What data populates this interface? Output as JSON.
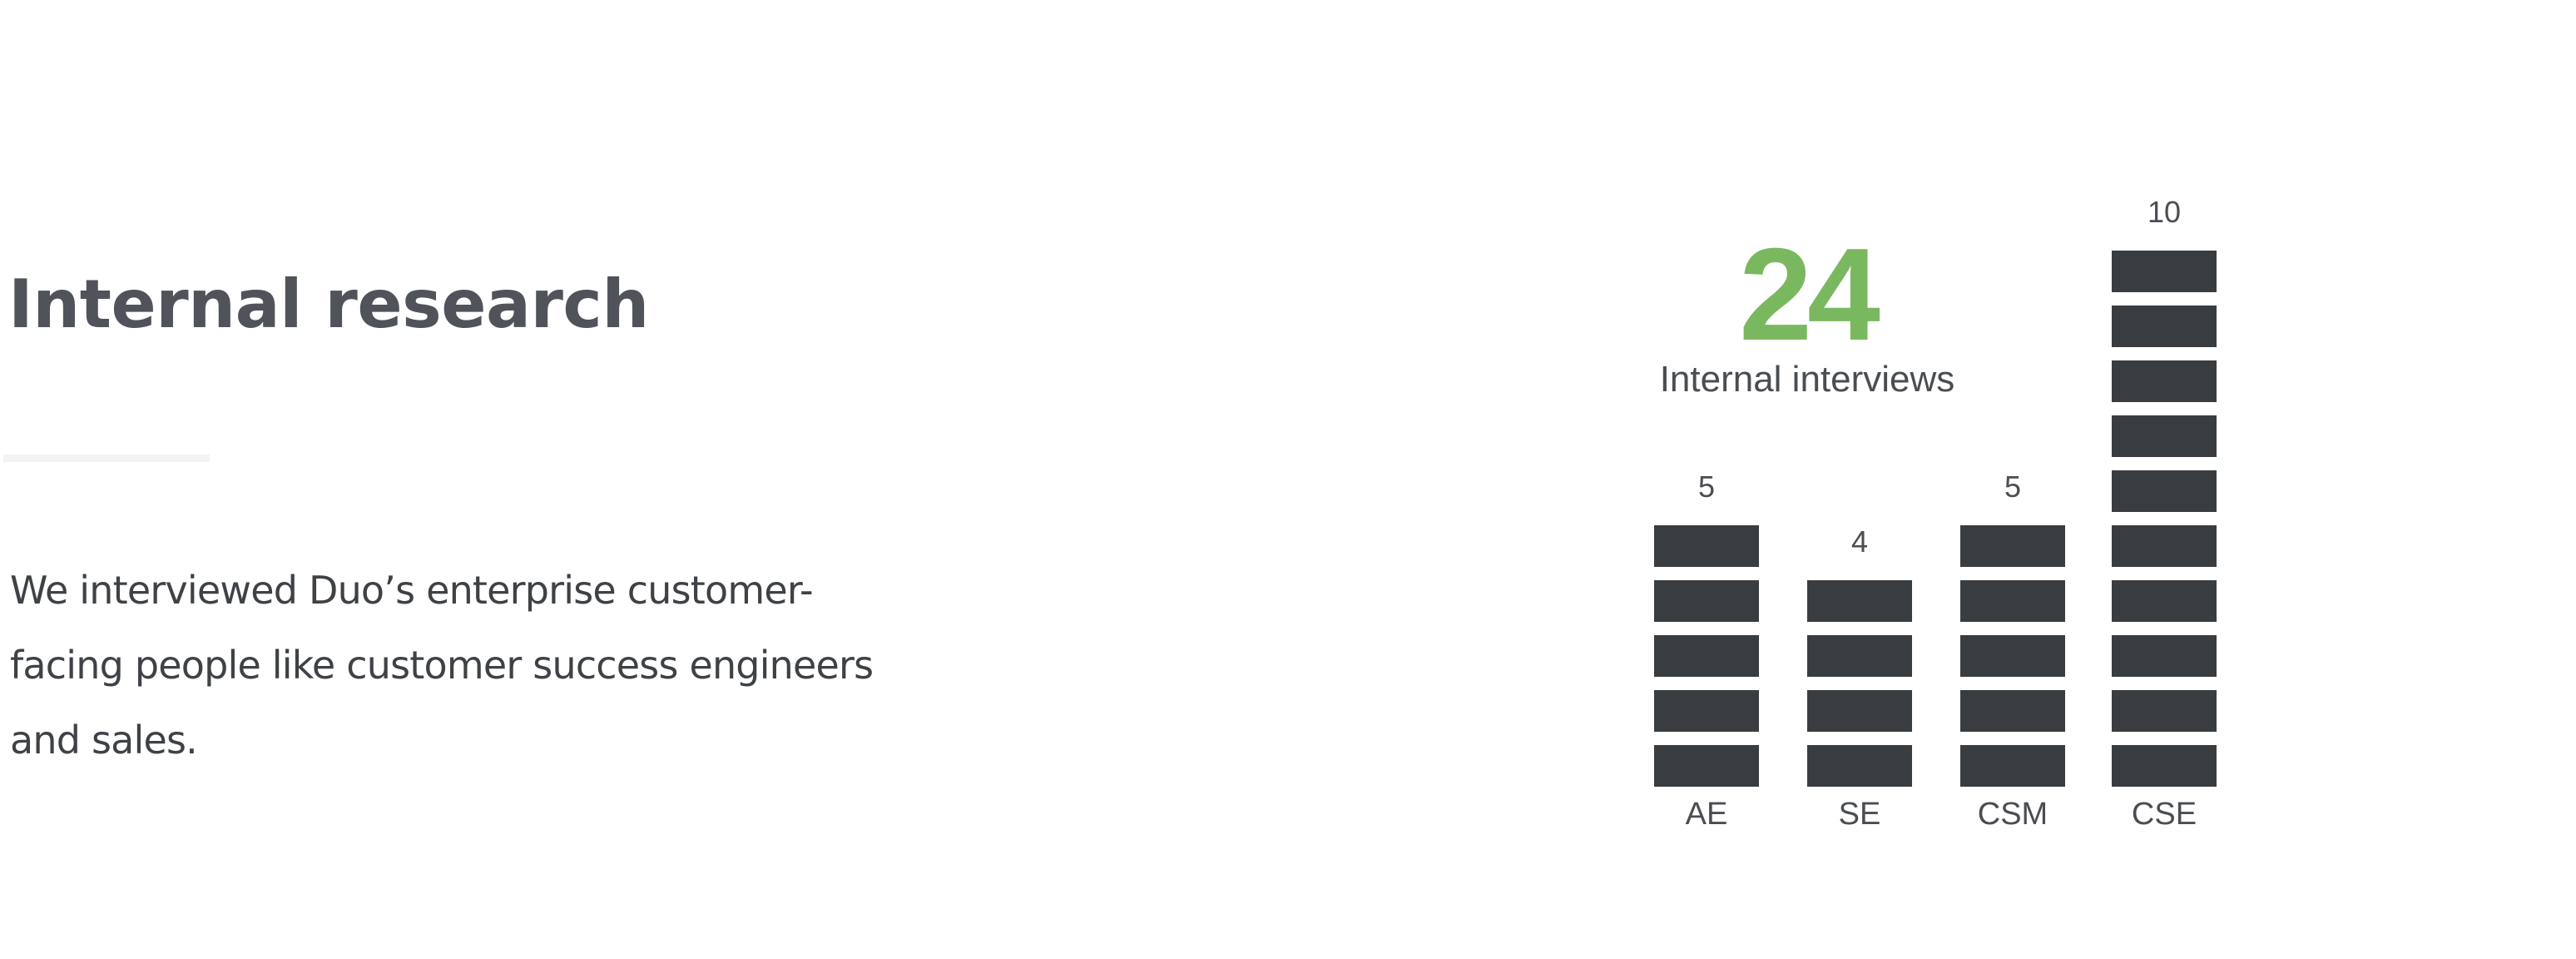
{
  "section": {
    "title": "Internal research",
    "description": "We interviewed Duo’s enterprise customer-facing people like customer success engineers and sales."
  },
  "colors": {
    "title": "#505359",
    "body_text": "#3e4146",
    "accent": "#7ab85f",
    "block": "#393d40",
    "label": "#4a4d52"
  },
  "chart_data": {
    "type": "bar",
    "style": "stacked unit blocks (one block per interview)",
    "total": {
      "value": "24",
      "caption": "Internal interviews"
    },
    "categories": [
      "AE",
      "SE",
      "CSM",
      "CSE"
    ],
    "values": [
      5,
      4,
      5,
      10
    ],
    "value_labels": [
      "5",
      "4",
      "5",
      "10"
    ],
    "grid": false,
    "legend": "none"
  }
}
